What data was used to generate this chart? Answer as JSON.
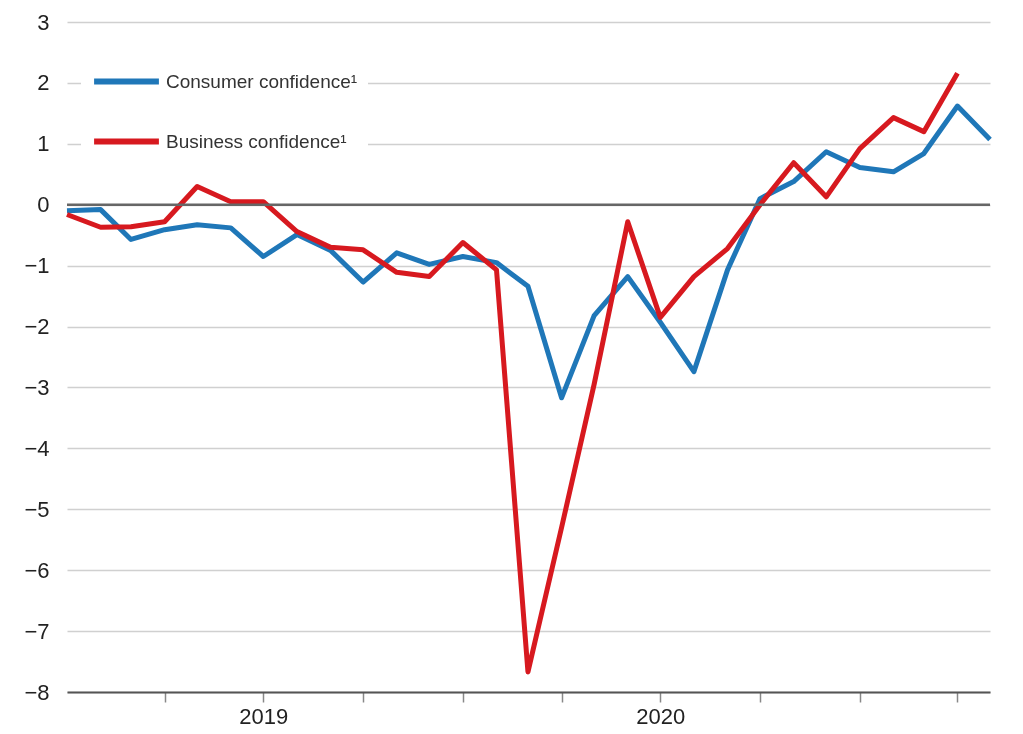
{
  "chart_data": {
    "type": "line",
    "x": [
      "2019-01",
      "2019-02",
      "2019-03",
      "2019-04",
      "2019-05",
      "2019-06",
      "2019-07",
      "2019-08",
      "2019-09",
      "2019-10",
      "2019-11",
      "2019-12",
      "2020-01",
      "2020-02",
      "2020-03",
      "2020-04",
      "2020-05",
      "2020-06",
      "2020-07",
      "2020-08",
      "2020-09",
      "2020-10",
      "2020-11",
      "2020-12",
      "2021-01",
      "2021-02",
      "2021-03",
      "2021-04",
      "2021-05"
    ],
    "series": [
      {
        "name": "Consumer confidence¹",
        "color": "#1f77b8",
        "values": [
          -0.1,
          -0.08,
          -0.57,
          -0.41,
          -0.33,
          -0.38,
          -0.85,
          -0.49,
          -0.75,
          -1.27,
          -0.79,
          -0.98,
          -0.85,
          -0.95,
          -1.34,
          -3.17,
          -1.82,
          -1.18,
          -1.93,
          -2.74,
          -1.07,
          0.1,
          0.38,
          0.87,
          0.61,
          0.54,
          0.84,
          1.62,
          1.07
        ]
      },
      {
        "name": "Business confidence¹",
        "color": "#d7191f",
        "values": [
          -0.16,
          -0.37,
          -0.36,
          -0.28,
          0.3,
          0.05,
          0.05,
          -0.44,
          -0.7,
          -0.74,
          -1.11,
          -1.18,
          -0.62,
          -1.07,
          -7.67,
          -5.3,
          -2.95,
          -0.28,
          -1.85,
          -1.18,
          -0.72,
          0.0,
          0.69,
          0.13,
          0.92,
          1.43,
          1.2,
          2.16,
          null
        ]
      }
    ],
    "xlim": [
      "2019-01",
      "2021-05"
    ],
    "xticks": [
      {
        "value": "2019-04",
        "label": null
      },
      {
        "value": "2019-07",
        "label": "2019"
      },
      {
        "value": "2019-10",
        "label": null
      },
      {
        "value": "2020-01",
        "label": null
      },
      {
        "value": "2020-04",
        "label": null
      },
      {
        "value": "2020-07",
        "label": "2020"
      },
      {
        "value": "2020-10",
        "label": null
      },
      {
        "value": "2021-01",
        "label": null
      },
      {
        "value": "2021-04",
        "label": null
      }
    ],
    "ylim": [
      -8,
      3
    ],
    "yticks": [
      -8,
      -7,
      -6,
      -5,
      -4,
      -3,
      -2,
      -1,
      0,
      1,
      2,
      3
    ],
    "grid": "y",
    "legend": "top left",
    "ref_lines": [
      {
        "axis": "y",
        "value": 0,
        "color": "#666666"
      }
    ]
  }
}
